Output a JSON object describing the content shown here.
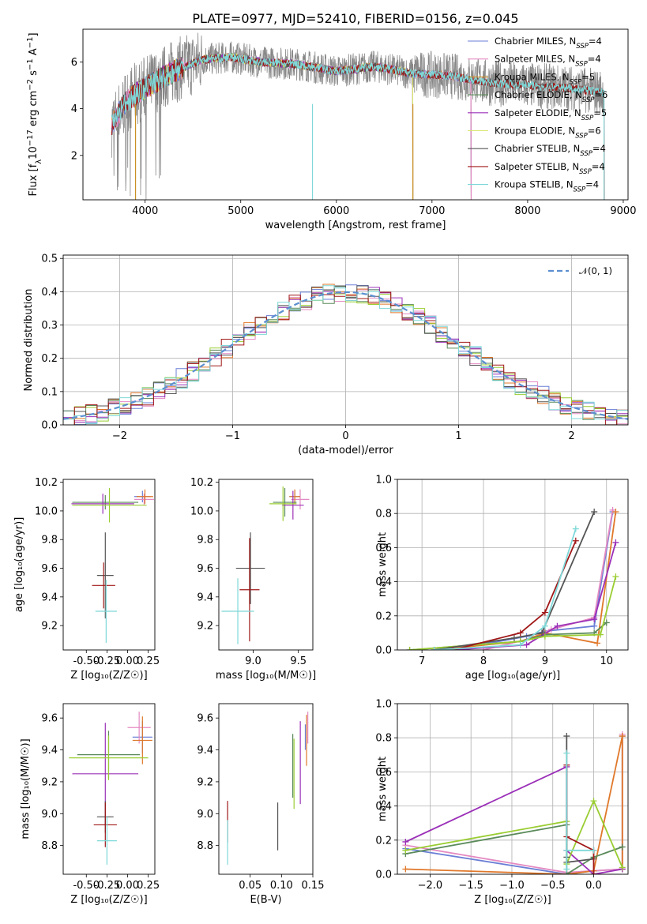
{
  "title": "PLATE=0977, MJD=52410, FIBERID=0156, z=0.045",
  "colors": {
    "Chabrier MILES": "#6a7fd6",
    "Salpeter MILES": "#e48ac2",
    "Kroupa MILES": "#c99024",
    "Chabrier ELODIE": "#5a8a5a",
    "Salpeter ELODIE": "#9b30b8",
    "Kroupa ELODIE": "#d9e66a",
    "Chabrier STELIB": "#555555",
    "Salpeter STELIB": "#a01818",
    "Kroupa STELIB": "#7fd8d8",
    "data": "#888888",
    "orange": "#e0782a",
    "lime": "#9acd32",
    "normal": "#5b8fd0"
  },
  "chart_data": [
    {
      "id": "spectrum",
      "type": "line",
      "title": "PLATE=0977, MJD=52410, FIBERID=0156, z=0.045",
      "xlabel": "wavelength [Angstrom, rest frame]",
      "ylabel": "Flux [f_λ 10^-17 erg cm^-2 s^-1 A^-1]",
      "xlim": [
        3350,
        9050
      ],
      "ylim": [
        0.1,
        7.4
      ],
      "xticks": [
        4000,
        5000,
        6000,
        7000,
        8000,
        9000
      ],
      "yticks": [
        2,
        4,
        6
      ],
      "legend": [
        {
          "label": "Chabrier MILES, N",
          "sub": "SSP",
          "tail": "=4",
          "key": "Chabrier MILES"
        },
        {
          "label": "Salpeter MILES, N",
          "sub": "SSP",
          "tail": "=4",
          "key": "Salpeter MILES"
        },
        {
          "label": "Kroupa MILES, N",
          "sub": "SSP",
          "tail": "=5",
          "key": "Kroupa MILES"
        },
        {
          "label": "Chabrier ELODIE, N",
          "sub": "SSP",
          "tail": "=6",
          "key": "Chabrier ELODIE"
        },
        {
          "label": "Salpeter ELODIE, N",
          "sub": "SSP",
          "tail": "=5",
          "key": "Salpeter ELODIE"
        },
        {
          "label": "Kroupa ELODIE, N",
          "sub": "SSP",
          "tail": "=6",
          "key": "Kroupa ELODIE"
        },
        {
          "label": "Chabrier STELIB, N",
          "sub": "SSP",
          "tail": "=4",
          "key": "Chabrier STELIB"
        },
        {
          "label": "Salpeter STELIB, N",
          "sub": "SSP",
          "tail": "=4",
          "key": "Salpeter STELIB"
        },
        {
          "label": "Kroupa STELIB, N",
          "sub": "SSP",
          "tail": "=4",
          "key": "Kroupa STELIB"
        }
      ],
      "legend_position": "upper-right",
      "continuum": [
        [
          3650,
          3.3
        ],
        [
          3800,
          4.3
        ],
        [
          4000,
          4.9
        ],
        [
          4300,
          5.6
        ],
        [
          4600,
          6.1
        ],
        [
          4900,
          6.2
        ],
        [
          5200,
          6.0
        ],
        [
          5600,
          5.9
        ],
        [
          6000,
          5.6
        ],
        [
          6400,
          5.8
        ],
        [
          6800,
          5.5
        ],
        [
          7200,
          5.4
        ],
        [
          7600,
          5.1
        ],
        [
          8000,
          5.0
        ],
        [
          8400,
          4.9
        ],
        [
          8800,
          4.7
        ]
      ],
      "model_extents": [
        {
          "key": "Kroupa MILES",
          "x": [
            3650,
            7410
          ]
        },
        {
          "key": "Chabrier MILES",
          "x": [
            3650,
            7410
          ]
        },
        {
          "key": "Salpeter MILES",
          "x": [
            3650,
            7410
          ]
        },
        {
          "key": "Chabrier ELODIE",
          "x": [
            3900,
            6800
          ]
        },
        {
          "key": "Salpeter ELODIE",
          "x": [
            3900,
            6800
          ]
        },
        {
          "key": "Kroupa ELODIE",
          "x": [
            3900,
            6800
          ]
        },
        {
          "key": "Chabrier STELIB",
          "x": [
            3650,
            8800
          ]
        },
        {
          "key": "Salpeter STELIB",
          "x": [
            3650,
            8800
          ]
        },
        {
          "key": "Kroupa STELIB",
          "x": [
            3650,
            8800
          ]
        }
      ]
    },
    {
      "id": "residuals",
      "type": "histogram",
      "xlabel": "(data-model)/error",
      "ylabel": "Normed distribution",
      "xlim": [
        -2.5,
        2.5
      ],
      "ylim": [
        0,
        0.51
      ],
      "xticks": [
        -2,
        -1,
        0,
        1,
        2
      ],
      "yticks": [
        0.0,
        0.1,
        0.2,
        0.3,
        0.4,
        0.5
      ],
      "grid": true,
      "legend": [
        {
          "label": "𝒩(0, 1)"
        }
      ],
      "legend_position": "upper-right",
      "bin_width": 0.1
    },
    {
      "id": "age_vs_Z",
      "type": "errorbar",
      "xlabel": "Z [log₁₀(Z/Z☉)]",
      "ylabel": "age  [log₁₀(age/yr)]",
      "xlim": [
        -0.78,
        0.33
      ],
      "ylim": [
        9.03,
        10.22
      ],
      "xticks": [
        -0.5,
        -0.25,
        0.0,
        0.25
      ],
      "yticks": [
        9.2,
        9.4,
        9.6,
        9.8,
        10.0,
        10.2
      ],
      "points": [
        {
          "key": "Chabrier MILES",
          "x": 0.18,
          "y": 10.1,
          "xe": 0.1,
          "ye": 0.04
        },
        {
          "key": "Salpeter MILES",
          "x": 0.2,
          "y": 10.08,
          "xe": 0.12,
          "ye": 0.04
        },
        {
          "key": "Kroupa MILES",
          "x": 0.21,
          "y": 10.1,
          "xe": 0.1,
          "ye": 0.05
        },
        {
          "key": "Chabrier ELODIE",
          "x": -0.27,
          "y": 10.06,
          "xe": 0.4,
          "ye": 0.05
        },
        {
          "key": "Salpeter ELODIE",
          "x": -0.3,
          "y": 10.05,
          "xe": 0.38,
          "ye": 0.07
        },
        {
          "key": "Kroupa ELODIE",
          "x": -0.22,
          "y": 10.04,
          "xe": 0.45,
          "ye": 0.12
        },
        {
          "key": "Chabrier STELIB",
          "x": -0.27,
          "y": 9.55,
          "xe": 0.1,
          "ye": 0.3
        },
        {
          "key": "Salpeter STELIB",
          "x": -0.29,
          "y": 9.48,
          "xe": 0.14,
          "ye": 0.16
        },
        {
          "key": "Kroupa STELIB",
          "x": -0.26,
          "y": 9.3,
          "xe": 0.13,
          "ye": 0.22
        }
      ]
    },
    {
      "id": "age_vs_mass",
      "type": "errorbar",
      "xlabel": "mass [log₁₀(M/M☉)]",
      "ylabel": "",
      "xlim": [
        8.62,
        9.66
      ],
      "ylim": [
        9.03,
        10.22
      ],
      "xticks": [
        9.0,
        9.5
      ],
      "yticks": [
        9.2,
        9.4,
        9.6,
        9.8,
        10.0,
        10.2
      ],
      "points": [
        {
          "key": "Chabrier MILES",
          "x": 9.46,
          "y": 10.1,
          "xe": 0.06,
          "ye": 0.04
        },
        {
          "key": "Salpeter MILES",
          "x": 9.52,
          "y": 10.08,
          "xe": 0.1,
          "ye": 0.07
        },
        {
          "key": "Kroupa MILES",
          "x": 9.46,
          "y": 10.1,
          "xe": 0.06,
          "ye": 0.05
        },
        {
          "key": "Chabrier ELODIE",
          "x": 9.35,
          "y": 10.06,
          "xe": 0.13,
          "ye": 0.1
        },
        {
          "key": "Salpeter ELODIE",
          "x": 9.44,
          "y": 10.04,
          "xe": 0.12,
          "ye": 0.1
        },
        {
          "key": "Kroupa ELODIE",
          "x": 9.33,
          "y": 10.05,
          "xe": 0.15,
          "ye": 0.12
        },
        {
          "key": "Chabrier STELIB",
          "x": 8.97,
          "y": 9.6,
          "xe": 0.16,
          "ye": 0.25
        },
        {
          "key": "Salpeter STELIB",
          "x": 8.96,
          "y": 9.45,
          "xe": 0.11,
          "ye": 0.36
        },
        {
          "key": "Kroupa STELIB",
          "x": 8.83,
          "y": 9.3,
          "xe": 0.18,
          "ye": 0.23
        }
      ]
    },
    {
      "id": "mass_weight_age",
      "type": "line",
      "xlabel": "age  [log₁₀(age/yr)]",
      "ylabel": "mass weight",
      "xlim": [
        6.6,
        10.35
      ],
      "ylim": [
        0,
        1.0
      ],
      "xticks": [
        7,
        8,
        9,
        10
      ],
      "yticks": [
        0.0,
        0.2,
        0.4,
        0.6,
        0.8,
        1.0
      ],
      "grid": true,
      "series": [
        {
          "key": "Chabrier MILES",
          "x": [
            7.5,
            8.7,
            9.0,
            9.8,
            10.1
          ],
          "y": [
            0.0,
            0.08,
            0.11,
            0.14,
            0.81
          ]
        },
        {
          "key": "Salpeter MILES",
          "x": [
            8.0,
            8.8,
            9.1,
            9.8,
            10.1
          ],
          "y": [
            0.0,
            0.07,
            0.12,
            0.19,
            0.82
          ]
        },
        {
          "key": "Kroupa MILES",
          "x": [
            7.2,
            8.6,
            9.0,
            9.85,
            10.15
          ],
          "y": [
            0.0,
            0.05,
            0.1,
            0.04,
            0.81
          ]
        },
        {
          "key": "Chabrier ELODIE",
          "x": [
            6.8,
            8.6,
            9.0,
            9.8,
            10.0
          ],
          "y": [
            0.0,
            0.05,
            0.09,
            0.1,
            0.16
          ]
        },
        {
          "key": "Salpeter ELODIE",
          "x": [
            7.5,
            8.7,
            9.2,
            9.8,
            10.15
          ],
          "y": [
            0.0,
            0.03,
            0.14,
            0.18,
            0.63
          ]
        },
        {
          "key": "Kroupa ELODIE",
          "x": [
            6.8,
            8.6,
            9.0,
            9.9,
            10.15
          ],
          "y": [
            0.0,
            0.05,
            0.08,
            0.09,
            0.43
          ]
        },
        {
          "key": "Chabrier STELIB",
          "x": [
            7.2,
            8.5,
            8.95,
            9.8
          ],
          "y": [
            0.0,
            0.07,
            0.1,
            0.81
          ]
        },
        {
          "key": "Salpeter STELIB",
          "x": [
            7.5,
            8.6,
            9.0,
            9.5
          ],
          "y": [
            0.0,
            0.1,
            0.22,
            0.64
          ]
        },
        {
          "key": "Kroupa STELIB",
          "x": [
            7.2,
            8.6,
            9.0,
            9.5
          ],
          "y": [
            0.0,
            0.03,
            0.14,
            0.71
          ]
        }
      ]
    },
    {
      "id": "mass_vs_Z",
      "type": "errorbar",
      "xlabel": "Z [log₁₀(Z/Z☉)]",
      "ylabel": "mass [log₁₀(M/M☉)]",
      "xlim": [
        -0.78,
        0.33
      ],
      "ylim": [
        8.62,
        9.69
      ],
      "xticks": [
        -0.5,
        -0.25,
        0.0,
        0.25
      ],
      "yticks": [
        8.8,
        9.0,
        9.2,
        9.4,
        9.6
      ],
      "points": [
        {
          "key": "Chabrier MILES",
          "x": 0.18,
          "y": 9.48,
          "xe": 0.12,
          "ye": 0.1
        },
        {
          "key": "Salpeter MILES",
          "x": 0.14,
          "y": 9.54,
          "xe": 0.14,
          "ye": 0.1
        },
        {
          "key": "Kroupa MILES",
          "x": 0.18,
          "y": 9.46,
          "xe": 0.12,
          "ye": 0.15
        },
        {
          "key": "Chabrier ELODIE",
          "x": -0.23,
          "y": 9.37,
          "xe": 0.38,
          "ye": 0.15
        },
        {
          "key": "Salpeter ELODIE",
          "x": -0.27,
          "y": 9.25,
          "xe": 0.4,
          "ye": 0.32
        },
        {
          "key": "Kroupa ELODIE",
          "x": -0.23,
          "y": 9.35,
          "xe": 0.48,
          "ye": 0.14
        },
        {
          "key": "Chabrier STELIB",
          "x": -0.27,
          "y": 8.98,
          "xe": 0.1,
          "ye": 0.1
        },
        {
          "key": "Salpeter STELIB",
          "x": -0.27,
          "y": 8.93,
          "xe": 0.14,
          "ye": 0.14
        },
        {
          "key": "Kroupa STELIB",
          "x": -0.25,
          "y": 8.83,
          "xe": 0.12,
          "ye": 0.15
        }
      ]
    },
    {
      "id": "mass_vs_EBV",
      "type": "errorbar",
      "xlabel": "E(B-V)",
      "ylabel": "",
      "xlim": [
        0.0,
        0.15
      ],
      "ylim": [
        8.62,
        9.69
      ],
      "xticks": [
        0.05,
        0.1,
        0.15
      ],
      "yticks": [
        8.8,
        9.0,
        9.2,
        9.4,
        9.6
      ],
      "points": [
        {
          "key": "Chabrier MILES",
          "x": 0.138,
          "y": 9.48,
          "xe": 0,
          "ye": 0.08
        },
        {
          "key": "Salpeter MILES",
          "x": 0.142,
          "y": 9.54,
          "xe": 0,
          "ye": 0.1
        },
        {
          "key": "Kroupa MILES",
          "x": 0.14,
          "y": 9.46,
          "xe": 0,
          "ye": 0.16
        },
        {
          "key": "Chabrier ELODIE",
          "x": 0.118,
          "y": 9.3,
          "xe": 0,
          "ye": 0.2
        },
        {
          "key": "Salpeter ELODIE",
          "x": 0.13,
          "y": 9.32,
          "xe": 0,
          "ye": 0.26
        },
        {
          "key": "Kroupa ELODIE",
          "x": 0.12,
          "y": 9.25,
          "xe": 0,
          "ye": 0.22
        },
        {
          "key": "Chabrier STELIB",
          "x": 0.094,
          "y": 8.92,
          "xe": 0,
          "ye": 0.15
        },
        {
          "key": "Salpeter STELIB",
          "x": 0.014,
          "y": 8.95,
          "xe": 0,
          "ye": 0.13
        },
        {
          "key": "Kroupa STELIB",
          "x": 0.014,
          "y": 8.82,
          "xe": 0,
          "ye": 0.14
        }
      ]
    },
    {
      "id": "mass_weight_Z",
      "type": "line",
      "xlabel": "Z [log₁₀(Z/Z☉)]",
      "ylabel": "mass weight",
      "xlim": [
        -2.4,
        0.42
      ],
      "ylim": [
        0,
        1.0
      ],
      "xticks": [
        -2.0,
        -1.5,
        -1.0,
        -0.5,
        0.0
      ],
      "yticks": [
        0.0,
        0.2,
        0.4,
        0.6,
        0.8,
        1.0
      ],
      "grid": true,
      "series": [
        {
          "key": "Chabrier MILES",
          "x": [
            -2.3,
            -0.33,
            0.0,
            0.35,
            0.35
          ],
          "y": [
            0.15,
            0.0,
            0.02,
            0.03,
            0.81
          ]
        },
        {
          "key": "Salpeter MILES",
          "x": [
            -2.3,
            -0.33,
            0.0,
            0.35,
            0.35
          ],
          "y": [
            0.17,
            0.01,
            0.02,
            0.03,
            0.82
          ]
        },
        {
          "key": "Kroupa MILES",
          "x": [
            -2.3,
            -0.33,
            0.0,
            0.35,
            0.35
          ],
          "y": [
            0.03,
            0.0,
            0.02,
            0.81,
            0.03
          ]
        },
        {
          "key": "Chabrier ELODIE",
          "x": [
            -2.3,
            -0.33,
            -0.33,
            0.0,
            0.35
          ],
          "y": [
            0.12,
            0.29,
            0.0,
            0.1,
            0.16
          ]
        },
        {
          "key": "Salpeter ELODIE",
          "x": [
            -2.3,
            -0.33,
            -0.33,
            0.0,
            0.35
          ],
          "y": [
            0.19,
            0.63,
            0.14,
            0.0,
            0.03
          ]
        },
        {
          "key": "Kroupa ELODIE",
          "x": [
            -2.3,
            -0.33,
            -0.33,
            0.0,
            0.35
          ],
          "y": [
            0.14,
            0.31,
            0.06,
            0.43,
            0.04
          ]
        },
        {
          "key": "Chabrier STELIB",
          "x": [
            -0.33,
            -0.33,
            -0.33,
            0.0
          ],
          "y": [
            0.81,
            0.1,
            0.07,
            0.09
          ]
        },
        {
          "key": "Salpeter STELIB",
          "x": [
            -0.33,
            -0.33,
            0.0,
            0.0
          ],
          "y": [
            0.64,
            0.22,
            0.14,
            0.0
          ]
        },
        {
          "key": "Kroupa STELIB",
          "x": [
            -0.33,
            -0.33,
            -0.33,
            0.0
          ],
          "y": [
            0.71,
            0.03,
            0.14,
            0.14
          ]
        }
      ]
    }
  ]
}
